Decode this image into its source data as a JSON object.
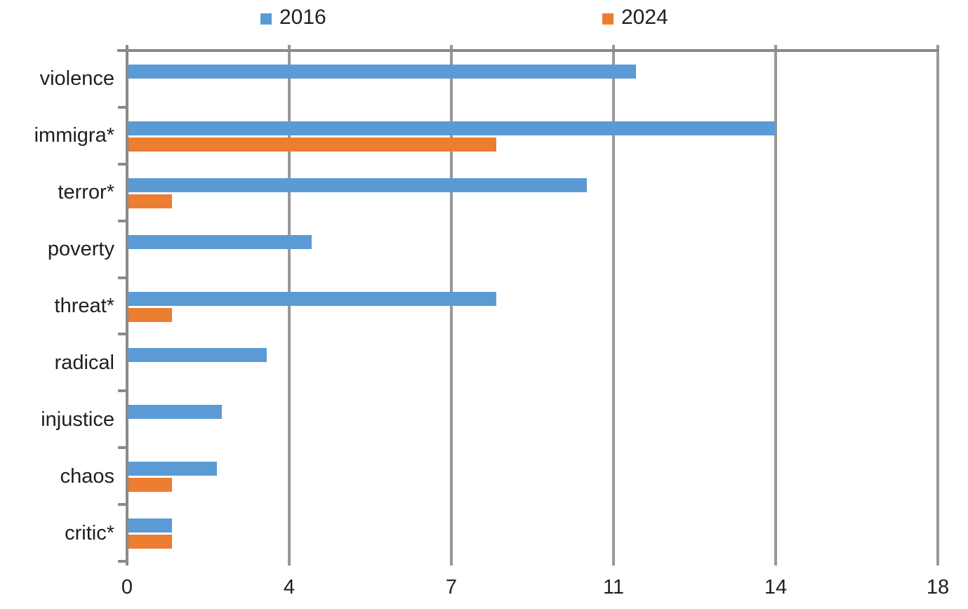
{
  "chart_data": {
    "type": "bar",
    "orientation": "horizontal",
    "title": "",
    "xlabel": "",
    "ylabel": "",
    "categories": [
      "violence",
      "immigra*",
      "terror*",
      "poverty",
      "threat*",
      "radical",
      "injustice",
      "chaos",
      "critic*"
    ],
    "series": [
      {
        "name": "2016",
        "color": "#5B9BD5",
        "values": [
          11.3,
          14.4,
          10.2,
          4.1,
          8.2,
          3.1,
          2.1,
          2.0,
          1.0
        ]
      },
      {
        "name": "2024",
        "color": "#ED7D31",
        "values": [
          0,
          8.2,
          1.0,
          0,
          1.0,
          0,
          0,
          1.0,
          1.0
        ]
      }
    ],
    "xlim": [
      0,
      18
    ],
    "x_ticks": [
      {
        "value": 0,
        "label": "0"
      },
      {
        "value": 3.6,
        "label": "4"
      },
      {
        "value": 7.2,
        "label": "7"
      },
      {
        "value": 10.8,
        "label": "11"
      },
      {
        "value": 14.4,
        "label": "14"
      },
      {
        "value": 18,
        "label": "18"
      }
    ],
    "grid": true,
    "legend_position": "top"
  },
  "legend": {
    "items": [
      {
        "label": "2016",
        "color": "#5B9BD5"
      },
      {
        "label": "2024",
        "color": "#ED7D31"
      }
    ]
  },
  "colors": {
    "series_2016": "#5B9BD5",
    "series_2024": "#ED7D31",
    "gridline": "#989898",
    "axis": "#8a8a8a",
    "text": "#1f1f1f",
    "background": "#ffffff"
  }
}
